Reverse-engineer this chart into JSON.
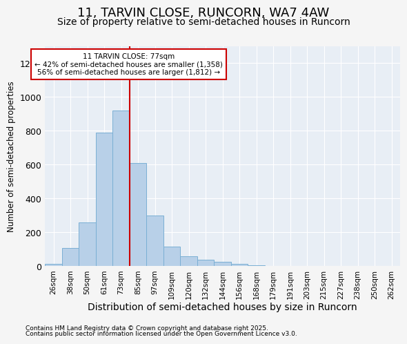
{
  "title": "11, TARVIN CLOSE, RUNCORN, WA7 4AW",
  "subtitle": "Size of property relative to semi-detached houses in Runcorn",
  "xlabel": "Distribution of semi-detached houses by size in Runcorn",
  "ylabel": "Number of semi-detached properties",
  "categories": [
    "26sqm",
    "38sqm",
    "50sqm",
    "61sqm",
    "73sqm",
    "85sqm",
    "97sqm",
    "109sqm",
    "120sqm",
    "132sqm",
    "144sqm",
    "156sqm",
    "168sqm",
    "179sqm",
    "191sqm",
    "203sqm",
    "215sqm",
    "227sqm",
    "238sqm",
    "250sqm",
    "262sqm"
  ],
  "values": [
    15,
    110,
    260,
    790,
    920,
    610,
    300,
    115,
    60,
    40,
    25,
    15,
    5,
    2,
    1,
    0,
    0,
    0,
    0,
    0,
    1
  ],
  "bar_color": "#b8d0e8",
  "bar_edge_color": "#7aafd4",
  "vline_x": 4.5,
  "vline_color": "#cc0000",
  "annotation_title": "11 TARVIN CLOSE: 77sqm",
  "annotation_line1": "← 42% of semi-detached houses are smaller (1,358)",
  "annotation_line2": "56% of semi-detached houses are larger (1,812) →",
  "annotation_box_color": "white",
  "annotation_box_edge": "#cc0000",
  "ylim": [
    0,
    1300
  ],
  "yticks": [
    0,
    200,
    400,
    600,
    800,
    1000,
    1200
  ],
  "footer_line1": "Contains HM Land Registry data © Crown copyright and database right 2025.",
  "footer_line2": "Contains public sector information licensed under the Open Government Licence v3.0.",
  "bg_color": "#f5f5f5",
  "plot_bg_color": "#e8eef5",
  "grid_color": "white",
  "title_fontsize": 13,
  "subtitle_fontsize": 10
}
